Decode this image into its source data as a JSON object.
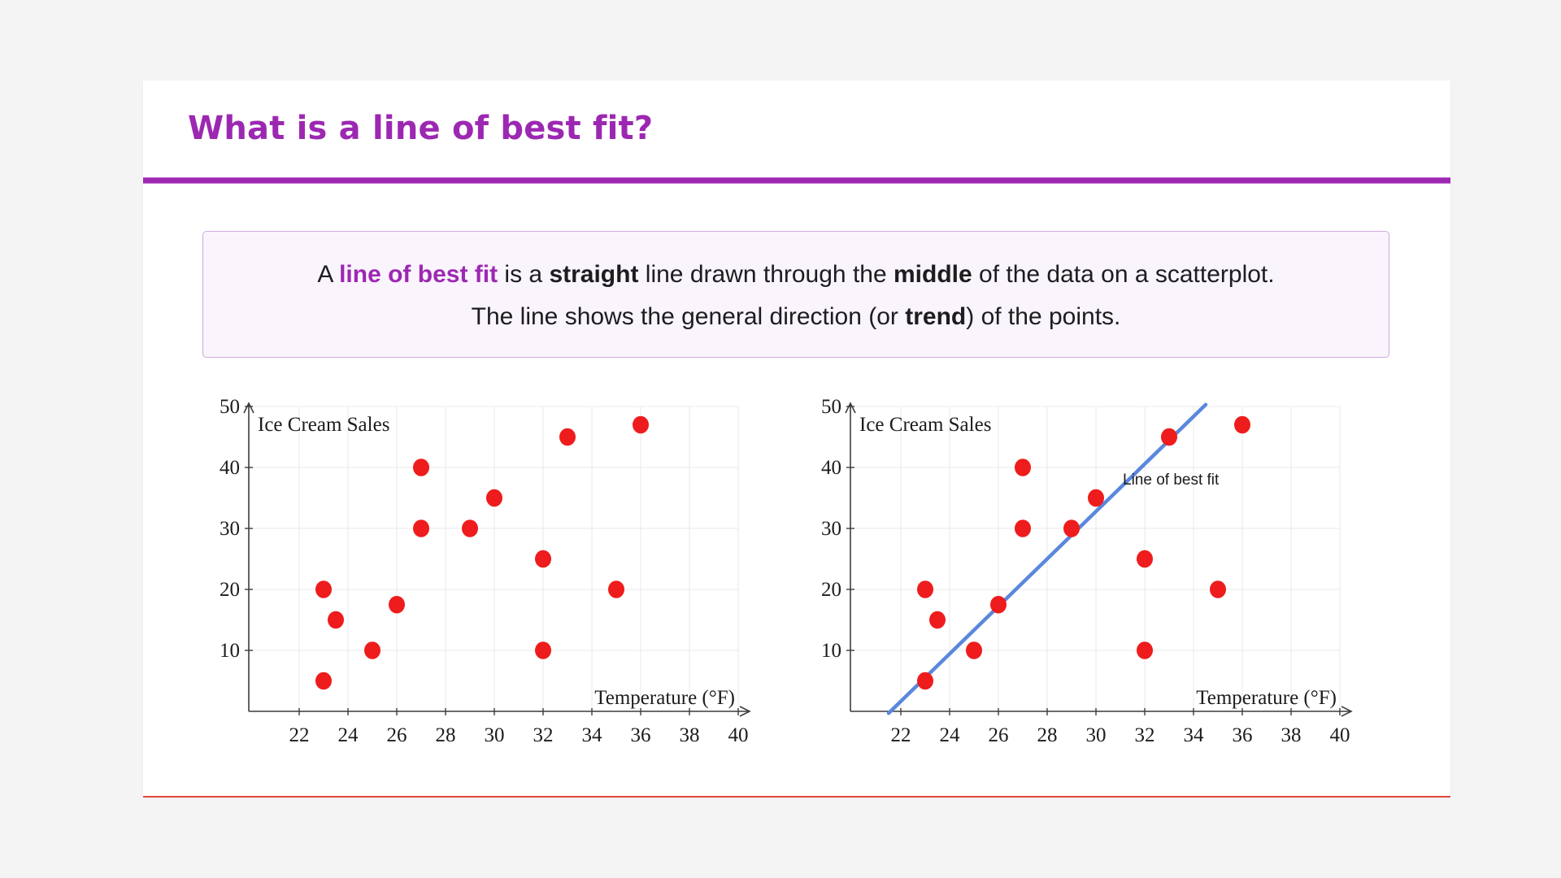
{
  "theme": {
    "page_bg": "#f4f4f5",
    "card_bg": "#ffffff",
    "purple": "#9c28b2",
    "card_accent": "#e2463b",
    "box_bg": "#faf4fc",
    "box_border": "#d0a8dd",
    "text": "#1d1d1f"
  },
  "header": {
    "title": "What is a line of best fit?"
  },
  "definition": {
    "line1": [
      {
        "text": "A ",
        "style": "normal"
      },
      {
        "text": "line of best fit",
        "style": "purple-bold"
      },
      {
        "text": " is a ",
        "style": "normal"
      },
      {
        "text": "straight",
        "style": "bold"
      },
      {
        "text": " line drawn through the ",
        "style": "normal"
      },
      {
        "text": "middle",
        "style": "bold"
      },
      {
        "text": " of the data on a scatterplot.",
        "style": "normal"
      }
    ],
    "line2": [
      {
        "text": "The line shows the general direction (or ",
        "style": "normal"
      },
      {
        "text": "trend",
        "style": "bold"
      },
      {
        "text": ") of the points.",
        "style": "normal"
      }
    ]
  },
  "chart_style": {
    "grid_color": "#e9e9e9",
    "axis_color": "#3c3c3c",
    "tick_text_color": "#1c1c1c",
    "point_color": "#ee1c1c",
    "fit_line_color": "#5b87dd"
  },
  "chart_data": [
    {
      "type": "scatter",
      "title": "",
      "ylabel": "Ice Cream Sales",
      "xlabel": "Temperature (°F)",
      "x_ticks": [
        22,
        24,
        26,
        28,
        30,
        32,
        34,
        36,
        38,
        40
      ],
      "y_ticks": [
        10,
        20,
        30,
        40,
        50
      ],
      "xlim": [
        20,
        40.6
      ],
      "ylim": [
        0,
        50
      ],
      "grid": true,
      "points": [
        [
          23,
          5
        ],
        [
          23,
          20
        ],
        [
          23.5,
          15
        ],
        [
          25,
          10
        ],
        [
          26,
          17.5
        ],
        [
          27,
          30
        ],
        [
          27,
          40
        ],
        [
          29,
          30
        ],
        [
          30,
          35
        ],
        [
          32,
          10
        ],
        [
          32,
          25
        ],
        [
          33,
          45
        ],
        [
          35,
          20
        ],
        [
          36,
          47
        ]
      ]
    },
    {
      "type": "scatter",
      "title": "",
      "ylabel": "Ice Cream Sales",
      "xlabel": "Temperature (°F)",
      "x_ticks": [
        22,
        24,
        26,
        28,
        30,
        32,
        34,
        36,
        38,
        40
      ],
      "y_ticks": [
        10,
        20,
        30,
        40,
        50
      ],
      "xlim": [
        20,
        40.6
      ],
      "ylim": [
        0,
        50
      ],
      "grid": true,
      "points": [
        [
          23,
          5
        ],
        [
          23,
          20
        ],
        [
          23.5,
          15
        ],
        [
          25,
          10
        ],
        [
          26,
          17.5
        ],
        [
          27,
          30
        ],
        [
          27,
          40
        ],
        [
          29,
          30
        ],
        [
          30,
          35
        ],
        [
          32,
          10
        ],
        [
          32,
          25
        ],
        [
          33,
          45
        ],
        [
          35,
          20
        ],
        [
          36,
          47
        ]
      ],
      "fit_line": {
        "x1": 21.5,
        "y1": -0.3,
        "x2": 34.5,
        "y2": 50.3,
        "label": "Line of best fit",
        "label_x": 31.1,
        "label_y": 37.2
      }
    }
  ]
}
